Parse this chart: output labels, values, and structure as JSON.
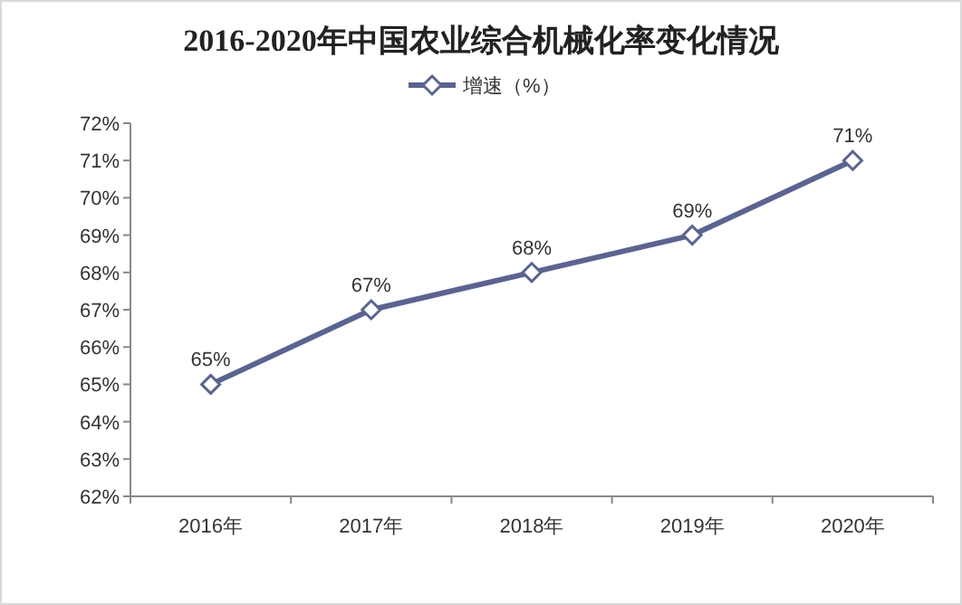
{
  "chart_data": {
    "type": "line",
    "title": "2016-2020年中国农业综合机械化率变化情况",
    "categories": [
      "2016年",
      "2017年",
      "2018年",
      "2019年",
      "2020年"
    ],
    "series": [
      {
        "name": "增速（%）",
        "color": "#5b6490",
        "values": [
          65,
          67,
          68,
          69,
          71
        ]
      }
    ],
    "ylim": [
      62,
      72
    ],
    "yticks": [
      {
        "value": 62,
        "label": "62%"
      },
      {
        "value": 63,
        "label": "63%"
      },
      {
        "value": 64,
        "label": "64%"
      },
      {
        "value": 65,
        "label": "65%"
      },
      {
        "value": 66,
        "label": "66%"
      },
      {
        "value": 67,
        "label": "67%"
      },
      {
        "value": 68,
        "label": "68%"
      },
      {
        "value": 69,
        "label": "69%"
      },
      {
        "value": 70,
        "label": "70%"
      },
      {
        "value": 71,
        "label": "71%"
      },
      {
        "value": 72,
        "label": "72%"
      }
    ],
    "value_labels": [
      "65%",
      "67%",
      "68%",
      "69%",
      "71%"
    ],
    "legend": "top",
    "marker": "diamond",
    "line_style": "solid",
    "grid": false
  }
}
